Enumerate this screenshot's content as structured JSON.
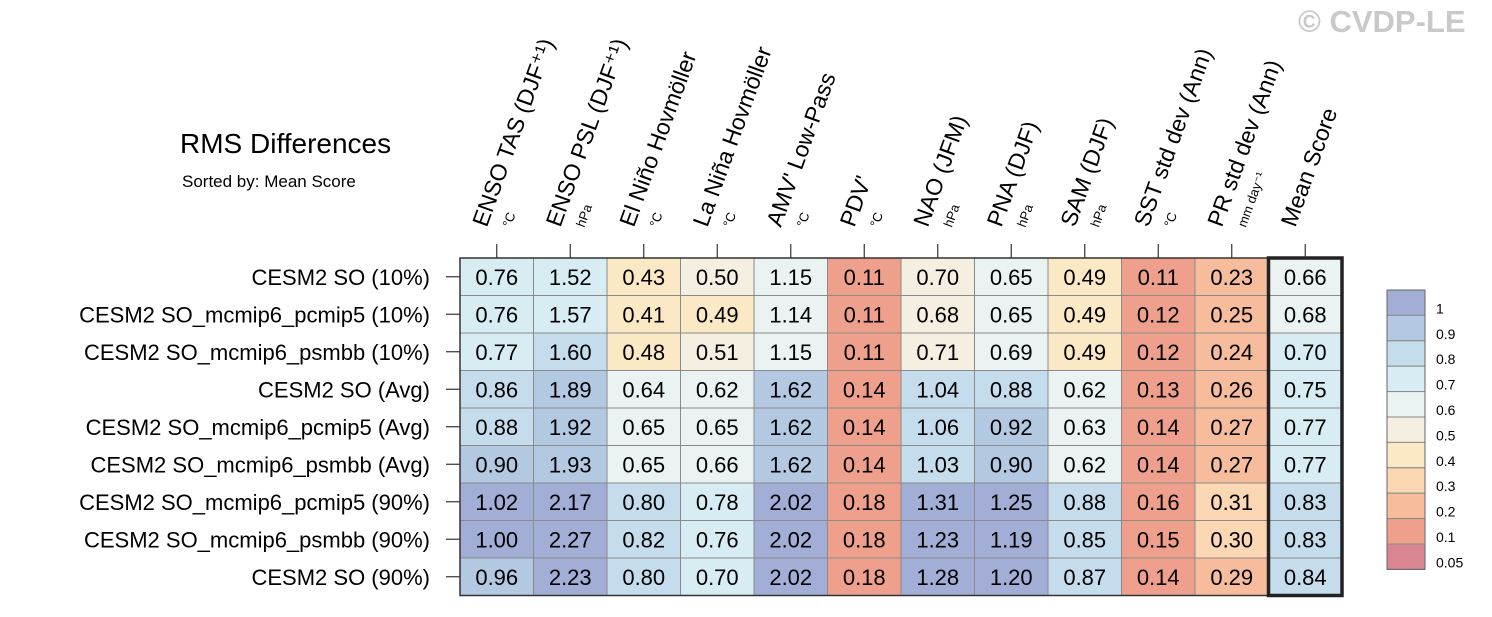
{
  "watermark": "© CVDP-LE",
  "chart_data": {
    "type": "heatmap",
    "title": "RMS Differences",
    "subtitle": "Sorted by: Mean Score",
    "columns": [
      {
        "label": "ENSO TAS (DJF⁺¹)",
        "unit": "°C"
      },
      {
        "label": "ENSO PSL (DJF⁺¹)",
        "unit": "hPa"
      },
      {
        "label": "El Niño Hovmöller",
        "unit": "°C"
      },
      {
        "label": "La Niña Hovmöller",
        "unit": "°C"
      },
      {
        "label": "AMV' Low-Pass",
        "unit": "°C"
      },
      {
        "label": "PDV'",
        "unit": "°C"
      },
      {
        "label": "NAO (JFM)",
        "unit": "hPa"
      },
      {
        "label": "PNA (DJF)",
        "unit": "hPa"
      },
      {
        "label": "SAM (DJF)",
        "unit": "hPa"
      },
      {
        "label": "SST std dev (Ann)",
        "unit": "°C"
      },
      {
        "label": "PR std dev (Ann)",
        "unit": "mm day⁻¹"
      },
      {
        "label": "Mean Score",
        "unit": ""
      }
    ],
    "rows": [
      "CESM2 SO (10%)",
      "CESM2 SO_mcmip6_pcmip5 (10%)",
      "CESM2 SO_mcmip6_psmbb (10%)",
      "CESM2 SO (Avg)",
      "CESM2 SO_mcmip6_pcmip5 (Avg)",
      "CESM2 SO_mcmip6_psmbb (Avg)",
      "CESM2 SO_mcmip6_pcmip5 (90%)",
      "CESM2 SO_mcmip6_psmbb (90%)",
      "CESM2 SO (90%)"
    ],
    "values": [
      [
        "0.76",
        "1.52",
        "0.43",
        "0.50",
        "1.15",
        "0.11",
        "0.70",
        "0.65",
        "0.49",
        "0.11",
        "0.23",
        "0.66"
      ],
      [
        "0.76",
        "1.57",
        "0.41",
        "0.49",
        "1.14",
        "0.11",
        "0.68",
        "0.65",
        "0.49",
        "0.12",
        "0.25",
        "0.68"
      ],
      [
        "0.77",
        "1.60",
        "0.48",
        "0.51",
        "1.15",
        "0.11",
        "0.71",
        "0.69",
        "0.49",
        "0.12",
        "0.24",
        "0.70"
      ],
      [
        "0.86",
        "1.89",
        "0.64",
        "0.62",
        "1.62",
        "0.14",
        "1.04",
        "0.88",
        "0.62",
        "0.13",
        "0.26",
        "0.75"
      ],
      [
        "0.88",
        "1.92",
        "0.65",
        "0.65",
        "1.62",
        "0.14",
        "1.06",
        "0.92",
        "0.63",
        "0.14",
        "0.27",
        "0.77"
      ],
      [
        "0.90",
        "1.93",
        "0.65",
        "0.66",
        "1.62",
        "0.14",
        "1.03",
        "0.90",
        "0.62",
        "0.14",
        "0.27",
        "0.77"
      ],
      [
        "1.02",
        "2.17",
        "0.80",
        "0.78",
        "2.02",
        "0.18",
        "1.31",
        "1.25",
        "0.88",
        "0.16",
        "0.31",
        "0.83"
      ],
      [
        "1.00",
        "2.27",
        "0.82",
        "0.76",
        "2.02",
        "0.18",
        "1.23",
        "1.19",
        "0.85",
        "0.15",
        "0.30",
        "0.83"
      ],
      [
        "0.96",
        "2.23",
        "0.80",
        "0.70",
        "2.02",
        "0.18",
        "1.28",
        "1.20",
        "0.87",
        "0.14",
        "0.29",
        "0.84"
      ]
    ],
    "highlight_column": "Mean Score",
    "colorbar": {
      "labels": [
        "1",
        "0.9",
        "0.8",
        "0.7",
        "0.6",
        "0.5",
        "0.4",
        "0.3",
        "0.2",
        "0.1",
        "0.05"
      ],
      "colors": [
        "#a3aed6",
        "#b3c9e1",
        "#c5dcec",
        "#d8ecf3",
        "#eaf3f2",
        "#f4efe1",
        "#fbe9c5",
        "#fcd7b3",
        "#f6bc9c",
        "#efa08c",
        "#d98592"
      ]
    }
  }
}
